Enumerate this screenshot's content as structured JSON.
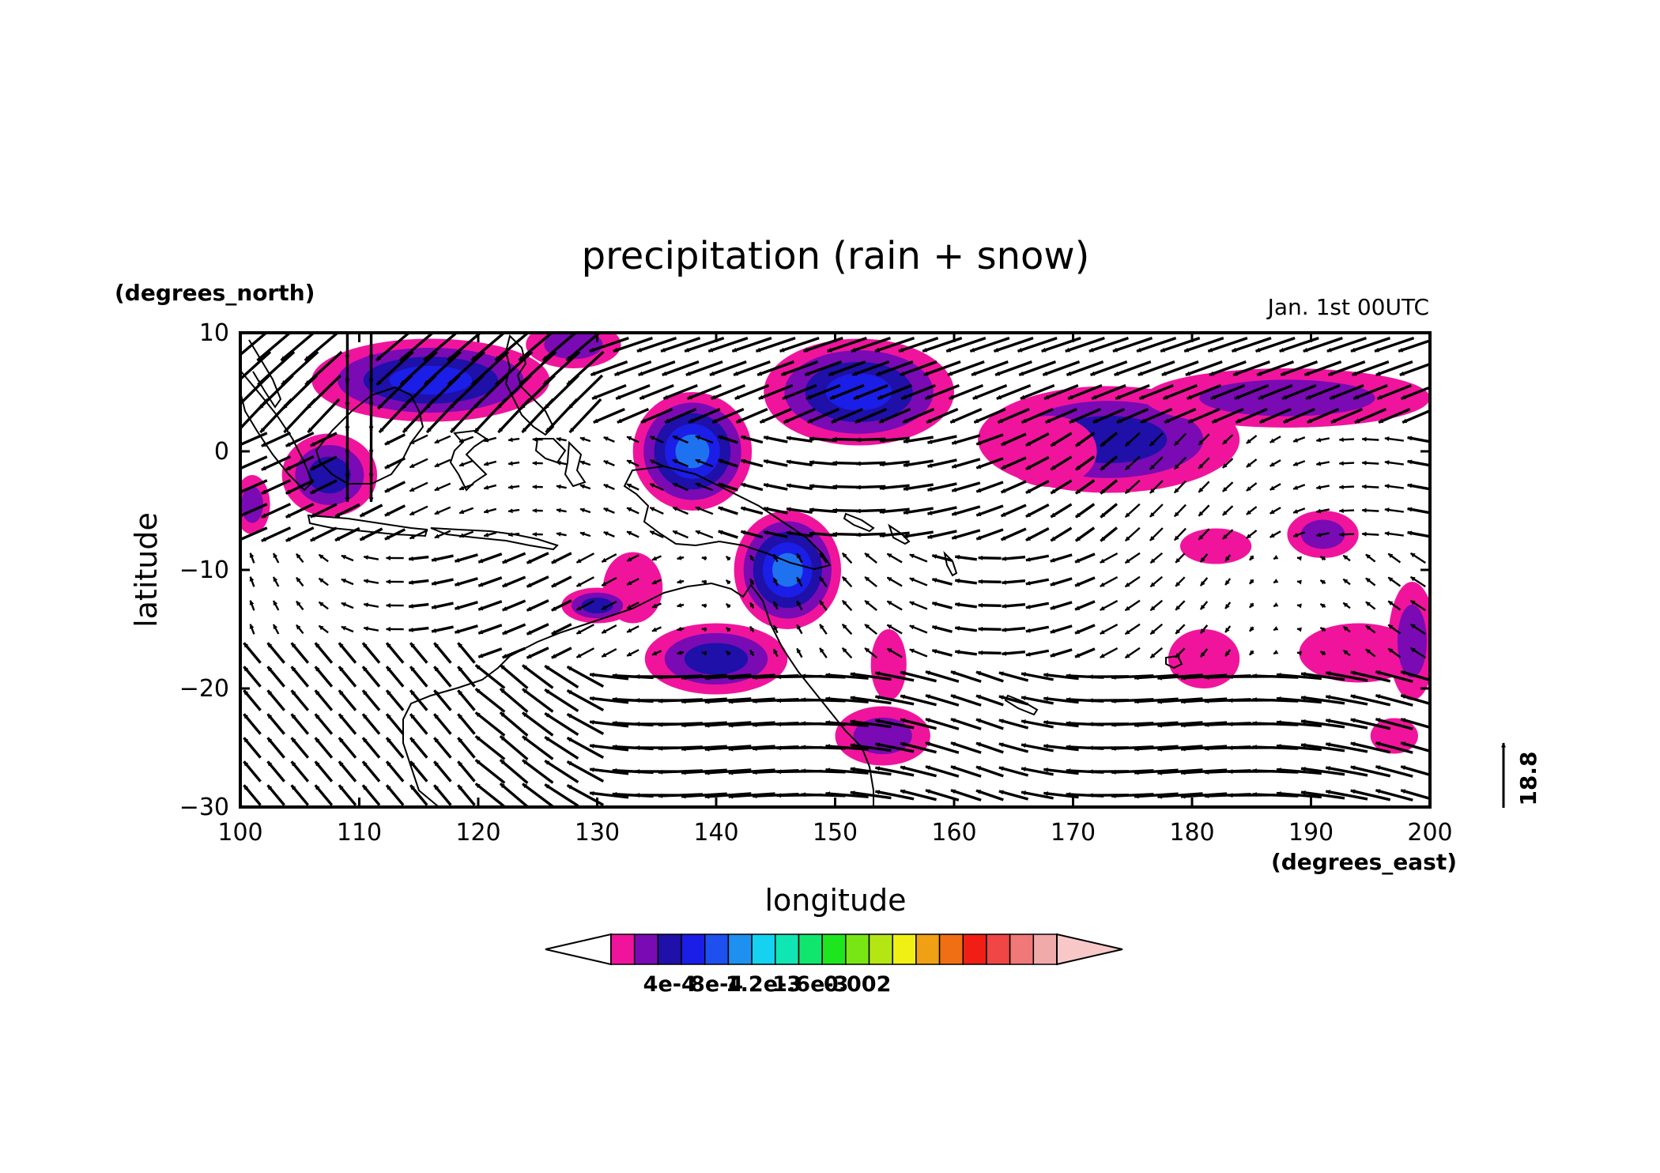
{
  "title": "precipitation (rain + snow)",
  "time_label": "Jan. 1st 00UTC",
  "colors": {
    "c1": "#f0149c",
    "c2": "#7a0ab4",
    "c3": "#1e10a8",
    "c4": "#1a1ee6",
    "c5": "#1e72f0",
    "c6": "#1eb4f0",
    "land": "#000000",
    "arrow": "#000000"
  },
  "chart_data": {
    "type": "heatmap",
    "title": "precipitation (rain + snow)",
    "xlabel": "longitude",
    "ylabel": "latitude",
    "x_units": "(degrees_east)",
    "y_units": "(degrees_north)",
    "xlim": [
      100,
      200
    ],
    "ylim": [
      -30,
      10
    ],
    "x_ticks": [
      100,
      110,
      120,
      130,
      140,
      150,
      160,
      170,
      180,
      190,
      200
    ],
    "x_tick_labels": [
      "100",
      "110",
      "120",
      "130",
      "140",
      "150",
      "160",
      "170",
      "180",
      "190",
      "200"
    ],
    "y_ticks": [
      -30,
      -20,
      -10,
      0,
      10
    ],
    "y_tick_labels": [
      "−30",
      "−20",
      "−10",
      "0",
      "10"
    ],
    "colorbar": {
      "colors": [
        "#ffffff",
        "#f0149c",
        "#7a0ab4",
        "#1e10a8",
        "#1a1ee6",
        "#1e50f0",
        "#1e90f0",
        "#14d2f0",
        "#10e6b4",
        "#10e66e",
        "#1ee61e",
        "#78e614",
        "#b4e614",
        "#f0f014",
        "#f0a014",
        "#f06e14",
        "#f01e14",
        "#f04646",
        "#f07878",
        "#f0aaaa",
        "#f8c8c8"
      ],
      "tick_values": [
        0.0004,
        0.0008,
        0.0012,
        0.0016,
        0.002
      ],
      "tick_labels": [
        "4e-4",
        "8e-4",
        "1.2e-3",
        "1.6e-3",
        "0.002"
      ],
      "extend": "both"
    },
    "vector_reference": {
      "value": 18.8,
      "label": "18.8"
    },
    "precip_cells": [
      {
        "lon": 116,
        "lat": 6,
        "rx": 10,
        "ry": 3.5,
        "level": 4
      },
      {
        "lon": 107.5,
        "lat": -2,
        "rx": 4,
        "ry": 3.5,
        "level": 3
      },
      {
        "lon": 101,
        "lat": -4.5,
        "rx": 1.5,
        "ry": 2.5,
        "level": 2
      },
      {
        "lon": 128,
        "lat": 9,
        "rx": 4,
        "ry": 2,
        "level": 2
      },
      {
        "lon": 138,
        "lat": 0,
        "rx": 5,
        "ry": 5,
        "level": 5
      },
      {
        "lon": 152,
        "lat": 5,
        "rx": 8,
        "ry": 4.5,
        "level": 4
      },
      {
        "lon": 146,
        "lat": -10,
        "rx": 4.5,
        "ry": 5,
        "level": 5
      },
      {
        "lon": 133,
        "lat": -11.5,
        "rx": 2.5,
        "ry": 3,
        "level": 1
      },
      {
        "lon": 130,
        "lat": -13,
        "rx": 3,
        "ry": 1.5,
        "level": 3
      },
      {
        "lon": 140,
        "lat": -17.5,
        "rx": 6,
        "ry": 3,
        "level": 3
      },
      {
        "lon": 154.5,
        "lat": -18,
        "rx": 1.5,
        "ry": 3,
        "level": 1
      },
      {
        "lon": 154,
        "lat": -24,
        "rx": 4,
        "ry": 2.5,
        "level": 2
      },
      {
        "lon": 173,
        "lat": 1,
        "rx": 11,
        "ry": 4.5,
        "level": 3
      },
      {
        "lon": 188,
        "lat": 4.5,
        "rx": 12,
        "ry": 2.5,
        "level": 2
      },
      {
        "lon": 168,
        "lat": 0,
        "rx": 4,
        "ry": 3,
        "level": 1
      },
      {
        "lon": 182,
        "lat": -8,
        "rx": 3,
        "ry": 1.5,
        "level": 1
      },
      {
        "lon": 191,
        "lat": -7,
        "rx": 3,
        "ry": 2,
        "level": 2
      },
      {
        "lon": 181,
        "lat": -17.5,
        "rx": 3,
        "ry": 2.5,
        "level": 1
      },
      {
        "lon": 194,
        "lat": -17,
        "rx": 5,
        "ry": 2.5,
        "level": 1
      },
      {
        "lon": 198.5,
        "lat": -16,
        "rx": 2,
        "ry": 5,
        "level": 2
      },
      {
        "lon": 197,
        "lat": -24,
        "rx": 2,
        "ry": 1.5,
        "level": 1
      }
    ]
  }
}
